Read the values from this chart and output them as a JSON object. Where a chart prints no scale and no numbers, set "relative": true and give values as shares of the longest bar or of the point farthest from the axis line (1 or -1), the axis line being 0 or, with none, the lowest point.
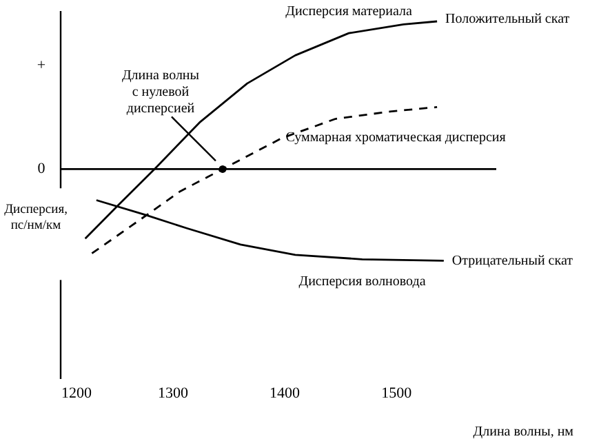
{
  "chart_data": {
    "type": "line",
    "relative": true,
    "xlabel": "Длина волны, нм",
    "ylabel": "Дисперсия,\nпс/нм/км",
    "xlim": [
      1200,
      1590
    ],
    "xticks": [
      1200,
      1300,
      1400,
      1500
    ],
    "grid": false,
    "marker": "none",
    "series": [
      {
        "name": "Дисперсия материала",
        "color": "#000000",
        "line_style": "solid",
        "x": [
          1222,
          1252,
          1284,
          1325,
          1367,
          1410,
          1458,
          1507,
          1537
        ],
        "values": [
          -0.47,
          -0.24,
          0,
          0.32,
          0.58,
          0.77,
          0.92,
          0.98,
          1.0
        ]
      },
      {
        "name": "Суммарная хроматическая дисперсия",
        "color": "#000000",
        "line_style": "dashed",
        "x": [
          1228,
          1264,
          1307,
          1345,
          1398,
          1446,
          1495,
          1537
        ],
        "values": [
          -0.57,
          -0.38,
          -0.15,
          0,
          0.21,
          0.34,
          0.39,
          0.42
        ]
      },
      {
        "name": "Дисперсия волновода",
        "color": "#000000",
        "line_style": "solid",
        "x": [
          1232,
          1276,
          1313,
          1361,
          1410,
          1470,
          1543
        ],
        "values": [
          -0.21,
          -0.31,
          -0.4,
          -0.51,
          -0.58,
          -0.61,
          -0.62
        ]
      }
    ],
    "ref_lines": [
      {
        "axis": "y",
        "value": 0,
        "color": "#000000",
        "line_style": "solid"
      }
    ],
    "annotations": [
      {
        "text": "Длина волны\nс нулевой\nдисперсией",
        "x": 1345,
        "y": 0
      },
      {
        "text": "Положительный скат",
        "x": 1537,
        "y": 1.0
      },
      {
        "text": "Отрицательный скат",
        "x": 1543,
        "y": -0.62
      },
      "+",
      "0"
    ]
  }
}
